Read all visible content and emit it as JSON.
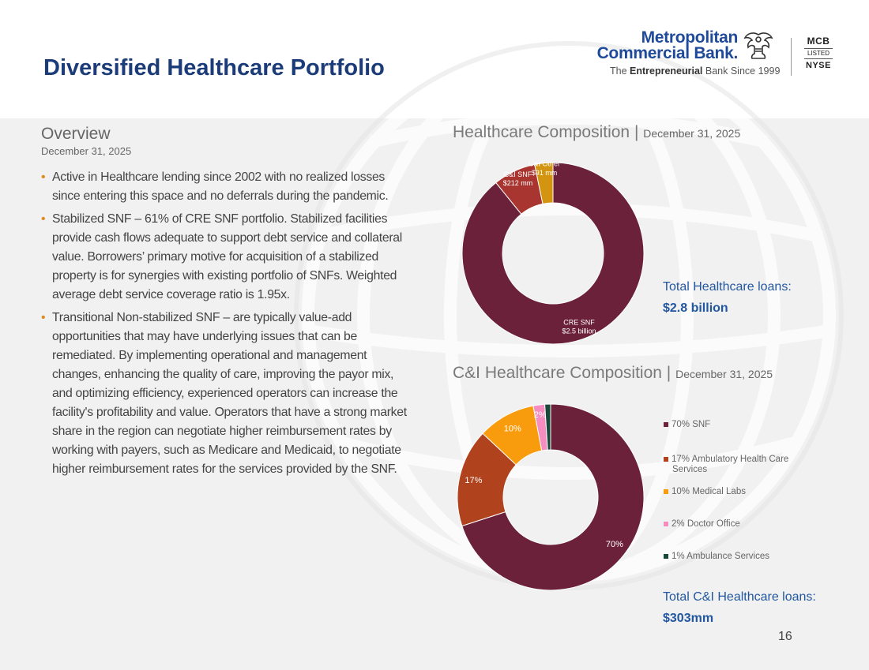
{
  "page": {
    "title": "Diversified Healthcare Portfolio",
    "page_number": "16"
  },
  "logo": {
    "name_line1": "Metropolitan",
    "name_line2": "Commercial Bank.",
    "tagline_prefix": "The ",
    "tagline_bold": "Entrepreneurial",
    "tagline_suffix": " Bank Since 1999",
    "exchange_ticker": "MCB",
    "exchange_listed": "LISTED",
    "exchange_name": "NYSE",
    "icon": "eagle-icon"
  },
  "overview": {
    "heading": "Overview",
    "date": "December 31, 2025",
    "bullets": [
      "Active in Healthcare lending since 2002 with no realized losses since entering this space and no deferrals during the pandemic.",
      "Stabilized SNF – 61% of CRE SNF portfolio. Stabilized facilities provide cash flows adequate to support debt service and collateral value. Borrowers’ primary motive for acquisition of a stabilized property is for synergies with existing portfolio of SNFs. Weighted average debt service coverage ratio is 1.95x.",
      "Transitional Non-stabilized SNF – are typically value-add opportunities that may have underlying issues that can be remediated. By implementing operational and management changes, enhancing the quality of care, improving the payor mix, and optimizing efficiency, experienced operators can increase the facility's profitability and value. Operators that have a strong market share in the region can negotiate higher reimbursement rates by working with payers, such as Medicare and Medicaid, to negotiate higher reimbursement rates for the services provided by the SNF."
    ]
  },
  "healthcare_section": {
    "heading": "Healthcare Composition",
    "separator": "|",
    "date": "December 31, 2025",
    "total_label": "Total Healthcare loans:",
    "total_value": "$2.8 billion"
  },
  "ci_section": {
    "heading": "C&I Healthcare Composition",
    "separator": "|",
    "date": "December 31, 2025",
    "total_label": "Total C&I Healthcare loans:",
    "total_value": "$303mm"
  },
  "chart_data": [
    {
      "type": "pie",
      "donut": true,
      "title": "Healthcare Composition",
      "labels": [
        "CRE SNF",
        "C&I SNF",
        "C&I Other"
      ],
      "value_labels": [
        "$2.5 billion",
        "$212 mm",
        "$91 mm"
      ],
      "values": [
        2500,
        212,
        91
      ],
      "units": "$mm",
      "colors": [
        "#6b2139",
        "#a8352f",
        "#d3950f"
      ]
    },
    {
      "type": "pie",
      "donut": true,
      "title": "C&I Healthcare Composition",
      "labels": [
        "SNF",
        "Ambulatory Health Care Services",
        "Medical Labs",
        "Doctor Office",
        "Ambulance Services"
      ],
      "values": [
        70,
        17,
        10,
        2,
        1
      ],
      "units": "%",
      "slice_labels": [
        "70%",
        "17%",
        "10%",
        "2%",
        ""
      ],
      "legend_entries": [
        "70% SNF",
        "17% Ambulatory Health Care Services",
        "10% Medical Labs",
        "2% Doctor Office",
        "1% Ambulance Services"
      ],
      "legend_position": "right",
      "colors": [
        "#6b2139",
        "#b0431e",
        "#f89c0e",
        "#f58dc0",
        "#16493a"
      ]
    }
  ]
}
